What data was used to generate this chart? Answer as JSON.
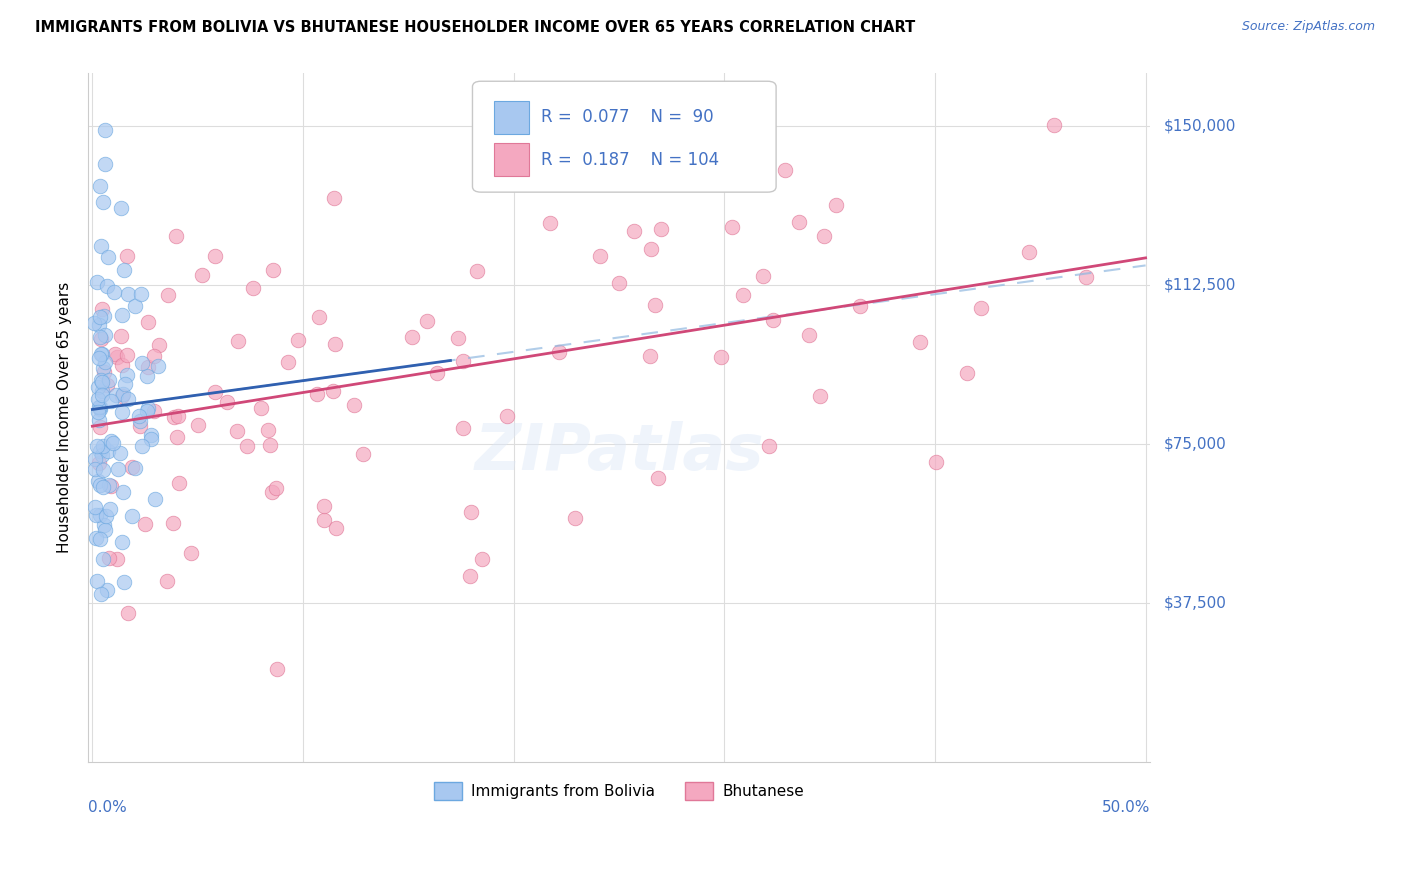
{
  "title": "IMMIGRANTS FROM BOLIVIA VS BHUTANESE HOUSEHOLDER INCOME OVER 65 YEARS CORRELATION CHART",
  "source": "Source: ZipAtlas.com",
  "ylabel": "Householder Income Over 65 years",
  "ytick_labels": [
    "$37,500",
    "$75,000",
    "$112,500",
    "$150,000"
  ],
  "ytick_values": [
    37500,
    75000,
    112500,
    150000
  ],
  "ymin": 0,
  "ymax": 162500,
  "xmin": -0.002,
  "xmax": 0.502,
  "legend_bolivia": "Immigrants from Bolivia",
  "legend_bhutanese": "Bhutanese",
  "R_bolivia": "0.077",
  "N_bolivia": " 90",
  "R_bhutanese": "0.187",
  "N_bhutanese": "104",
  "color_bolivia_fill": "#A8C8F0",
  "color_bolivia_edge": "#6CA8E0",
  "color_bhutanese_fill": "#F4A8C0",
  "color_bhutanese_edge": "#E07898",
  "color_bolivia_line": "#3060B0",
  "color_bhutanese_line": "#D04878",
  "color_bolivia_dashed": "#90B8E0",
  "color_axis_label": "#4472C4",
  "watermark": "ZIPatlas",
  "seed": 123
}
